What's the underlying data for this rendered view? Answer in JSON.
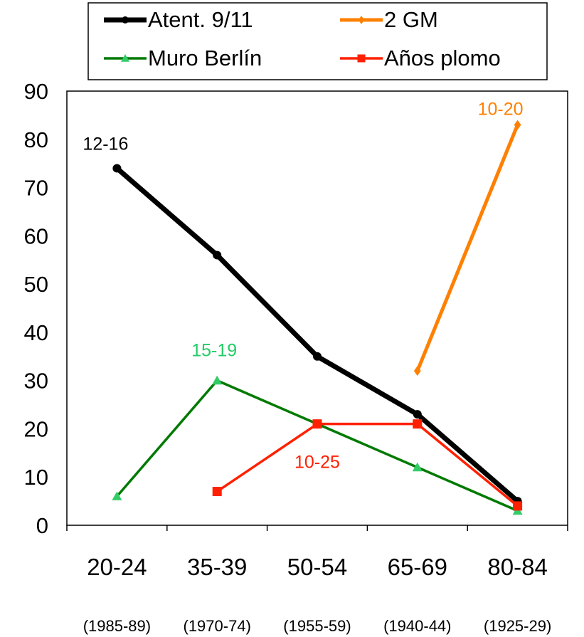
{
  "chart_data": {
    "type": "line",
    "categories": [
      "20-24",
      "35-39",
      "50-54",
      "65-69",
      "80-84"
    ],
    "sub_categories": [
      "(1985-89)",
      "(1970-74)",
      "(1955-59)",
      "(1940-44)",
      "(1925-29)"
    ],
    "ylim": [
      0,
      90
    ],
    "yticks": [
      "0",
      "10",
      "20",
      "30",
      "40",
      "50",
      "60",
      "70",
      "80",
      "90"
    ],
    "grid": false,
    "legend_position": "top",
    "series": [
      {
        "name": "Atent. 9/11",
        "color": "#000000",
        "marker": "circle",
        "values": [
          74,
          56,
          35,
          23,
          5
        ],
        "annotation": "12-16",
        "annotation_index": 0
      },
      {
        "name": "2 GM",
        "color": "#FF8000",
        "marker": "diamond",
        "values": [
          null,
          null,
          null,
          32,
          83
        ],
        "annotation": "10-20",
        "annotation_index": 4
      },
      {
        "name": "Muro Berlín",
        "color": "#007A00",
        "marker_color": "#33CC66",
        "marker": "triangle",
        "values": [
          6,
          30,
          21,
          12,
          3
        ],
        "annotation": "15-19",
        "annotation_index": 1
      },
      {
        "name": "Años plomo",
        "color": "#FF2000",
        "marker": "square",
        "values": [
          null,
          7,
          21,
          21,
          4
        ],
        "annotation": "10-25",
        "annotation_index": 2
      }
    ]
  }
}
